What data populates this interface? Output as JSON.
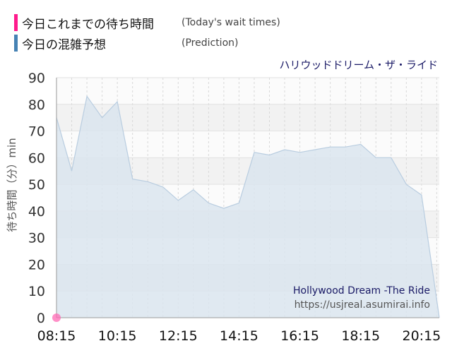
{
  "legend": [
    {
      "label": "今日これまでの待ち時間",
      "sub": "(Today's wait times)",
      "color": "#ff1a8c"
    },
    {
      "label": "今日の混雑予想",
      "sub": "(Prediction)",
      "color": "#4682b4"
    }
  ],
  "attraction_jp": "ハリウッドドリーム・ザ・ライド",
  "attraction_en": "Hollywood Dream -The Ride",
  "source": "https://usjreal.asumirai.info",
  "chart_data": {
    "type": "area",
    "ylabel": "待ち時間（分）min",
    "ylim": [
      0,
      90
    ],
    "yticks": [
      0,
      10,
      20,
      30,
      40,
      50,
      60,
      70,
      80,
      90
    ],
    "xlim": [
      "08:15",
      "20:50"
    ],
    "xticks": [
      "08:15",
      "10:15",
      "12:15",
      "14:15",
      "16:15",
      "18:15",
      "20:15"
    ],
    "grid": true,
    "series": [
      {
        "kind": "prediction",
        "color": "#b9cde0",
        "points": [
          [
            "08:15",
            75
          ],
          [
            "08:45",
            55
          ],
          [
            "09:15",
            83
          ],
          [
            "09:45",
            75
          ],
          [
            "10:15",
            81
          ],
          [
            "10:45",
            52
          ],
          [
            "11:15",
            51
          ],
          [
            "11:45",
            49
          ],
          [
            "12:15",
            44
          ],
          [
            "12:45",
            48
          ],
          [
            "13:15",
            43
          ],
          [
            "13:45",
            41
          ],
          [
            "14:15",
            43
          ],
          [
            "14:45",
            62
          ],
          [
            "15:15",
            61
          ],
          [
            "15:45",
            63
          ],
          [
            "16:15",
            62
          ],
          [
            "16:45",
            63
          ],
          [
            "17:15",
            64
          ],
          [
            "17:45",
            64
          ],
          [
            "18:15",
            65
          ],
          [
            "18:45",
            60
          ],
          [
            "19:15",
            60
          ],
          [
            "19:45",
            50
          ],
          [
            "20:15",
            46
          ],
          [
            "20:50",
            0
          ]
        ]
      },
      {
        "kind": "actual",
        "color": "#ff69b4",
        "points": [
          [
            "08:15",
            0
          ]
        ]
      }
    ]
  }
}
